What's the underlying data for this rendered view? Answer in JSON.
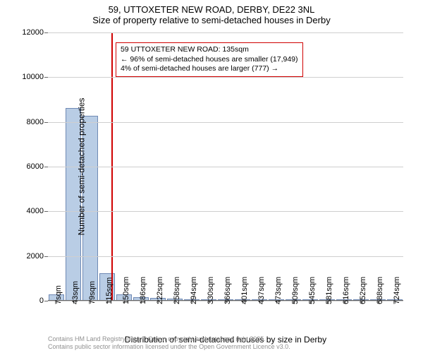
{
  "title": {
    "line1": "59, UTTOXETER NEW ROAD, DERBY, DE22 3NL",
    "line2": "Size of property relative to semi-detached houses in Derby"
  },
  "chart": {
    "type": "bar",
    "ylabel": "Number of semi-detached properties",
    "xlabel": "Distribution of semi-detached houses by size in Derby",
    "ylim": [
      0,
      12000
    ],
    "yticks": [
      0,
      2000,
      4000,
      6000,
      8000,
      10000,
      12000
    ],
    "bar_fill": "#b9cde5",
    "bar_stroke": "#6f89b4",
    "grid_color": "#cfcfcf",
    "axis_color": "#666666",
    "background": "#ffffff",
    "categories": [
      "7sqm",
      "43sqm",
      "79sqm",
      "115sqm",
      "150sqm",
      "186sqm",
      "222sqm",
      "258sqm",
      "294sqm",
      "330sqm",
      "366sqm",
      "401sqm",
      "437sqm",
      "473sqm",
      "509sqm",
      "545sqm",
      "581sqm",
      "616sqm",
      "652sqm",
      "688sqm",
      "724sqm"
    ],
    "values": [
      250,
      8600,
      8250,
      1200,
      250,
      120,
      80,
      50,
      30,
      20,
      15,
      10,
      8,
      6,
      5,
      4,
      3,
      2,
      1,
      1,
      1
    ],
    "marker": {
      "position_sqm": 135,
      "color": "#d00000"
    },
    "annotation": {
      "line1": "59 UTTOXETER NEW ROAD: 135sqm",
      "line2": "← 96% of semi-detached houses are smaller (17,949)",
      "line3": "4% of semi-detached houses are larger (777) →",
      "border_color": "#d00000",
      "bg_color": "#ffffff"
    }
  },
  "footer": {
    "line1": "Contains HM Land Registry data © Crown copyright and database right 2025.",
    "line2": "Contains public sector information licensed under the Open Government Licence v3.0."
  }
}
